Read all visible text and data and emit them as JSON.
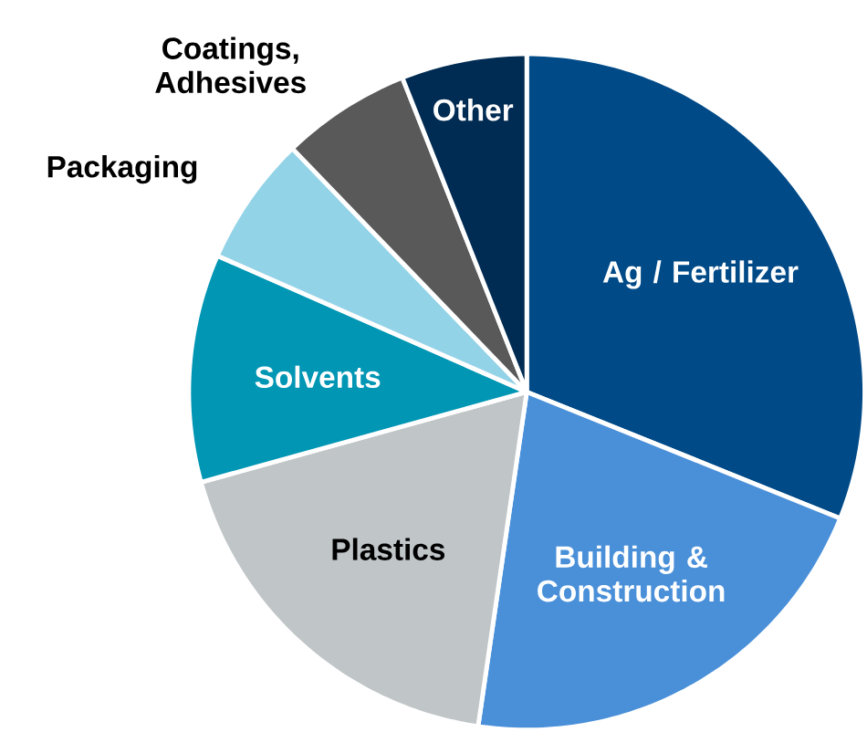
{
  "chart_data": {
    "type": "pie",
    "categories": [
      "Ag / Fertilizer",
      "Building & Construction",
      "Plastics",
      "Solvents",
      "Packaging",
      "Coatings, Adhesives",
      "Other"
    ],
    "values": [
      31.1,
      21.2,
      18.4,
      10.9,
      6.2,
      6.2,
      6.0
    ],
    "colors": [
      "#004a87",
      "#4a90d9",
      "#c0c5c8",
      "#0096b4",
      "#93d3e8",
      "#595959",
      "#002b52"
    ]
  }
}
